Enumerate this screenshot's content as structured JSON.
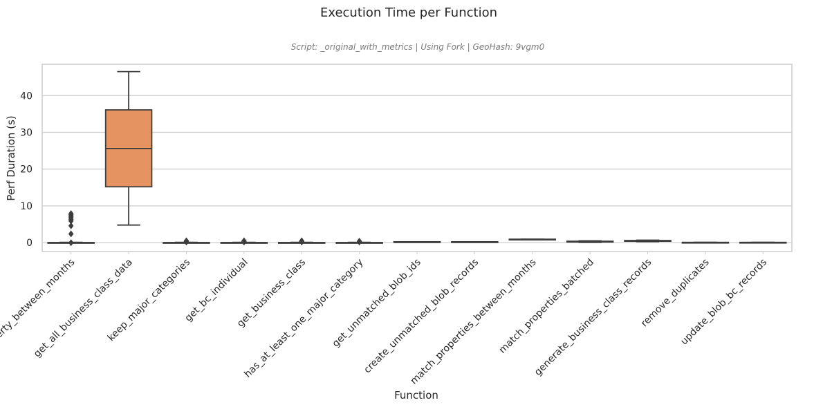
{
  "chart_data": {
    "type": "box",
    "title": "Execution Time per Function",
    "subtitle": "Script: _original_with_metrics | Using Fork | GeoHash: 9vgm0",
    "xlabel": "Function",
    "ylabel": "Perf Duration (s)",
    "ylim": [
      -2.4,
      48.5
    ],
    "yticks": [
      0,
      10,
      20,
      30,
      40
    ],
    "grid": "horizontal",
    "colors": {
      "box_default": "#4c72b0",
      "box_highlight": "#e59461",
      "line": "#3d3d3d",
      "grid": "#cccccc"
    },
    "categories": [
      "match_property_between_months",
      "get_all_business_class_data",
      "keep_major_categories",
      "get_bc_individual",
      "get_business_class",
      "has_at_least_one_major_category",
      "get_unmatched_blob_ids",
      "create_unmatched_blob_records",
      "match_properties_between_months",
      "match_properties_batched",
      "generate_business_class_records",
      "remove_duplicates",
      "update_blob_bc_records"
    ],
    "boxes": [
      {
        "min": 0.0,
        "q1": 0.0,
        "median": 0.0,
        "q3": 0.05,
        "max": 0.1,
        "fliers": [
          0.0,
          2.4,
          4.6,
          5.9,
          6.3,
          6.7,
          7.0,
          7.3,
          7.6,
          7.9
        ]
      },
      {
        "min": 4.8,
        "q1": 15.2,
        "median": 25.6,
        "q3": 36.1,
        "max": 46.5,
        "fliers": []
      },
      {
        "min": 0.0,
        "q1": 0.0,
        "median": 0.0,
        "q3": 0.05,
        "max": 0.1,
        "fliers": [
          0.2,
          0.3,
          0.4,
          0.5
        ]
      },
      {
        "min": 0.0,
        "q1": 0.0,
        "median": 0.0,
        "q3": 0.05,
        "max": 0.1,
        "fliers": [
          0.2,
          0.3,
          0.4,
          0.5
        ]
      },
      {
        "min": 0.0,
        "q1": 0.0,
        "median": 0.0,
        "q3": 0.05,
        "max": 0.1,
        "fliers": [
          0.2,
          0.3,
          0.4,
          0.5
        ]
      },
      {
        "min": 0.0,
        "q1": 0.0,
        "median": 0.0,
        "q3": 0.05,
        "max": 0.1,
        "fliers": [
          0.2,
          0.4
        ]
      },
      {
        "min": 0.2,
        "q1": 0.2,
        "median": 0.2,
        "q3": 0.25,
        "max": 0.25,
        "fliers": []
      },
      {
        "min": 0.2,
        "q1": 0.2,
        "median": 0.2,
        "q3": 0.25,
        "max": 0.25,
        "fliers": []
      },
      {
        "min": 0.9,
        "q1": 0.9,
        "median": 0.9,
        "q3": 0.95,
        "max": 0.95,
        "fliers": []
      },
      {
        "min": 0.1,
        "q1": 0.2,
        "median": 0.3,
        "q3": 0.4,
        "max": 0.5,
        "fliers": []
      },
      {
        "min": 0.3,
        "q1": 0.4,
        "median": 0.5,
        "q3": 0.6,
        "max": 0.7,
        "fliers": []
      },
      {
        "min": 0.0,
        "q1": 0.0,
        "median": 0.05,
        "q3": 0.1,
        "max": 0.1,
        "fliers": []
      },
      {
        "min": 0.0,
        "q1": 0.0,
        "median": 0.05,
        "q3": 0.1,
        "max": 0.1,
        "fliers": []
      }
    ],
    "highlight_index": 1
  }
}
